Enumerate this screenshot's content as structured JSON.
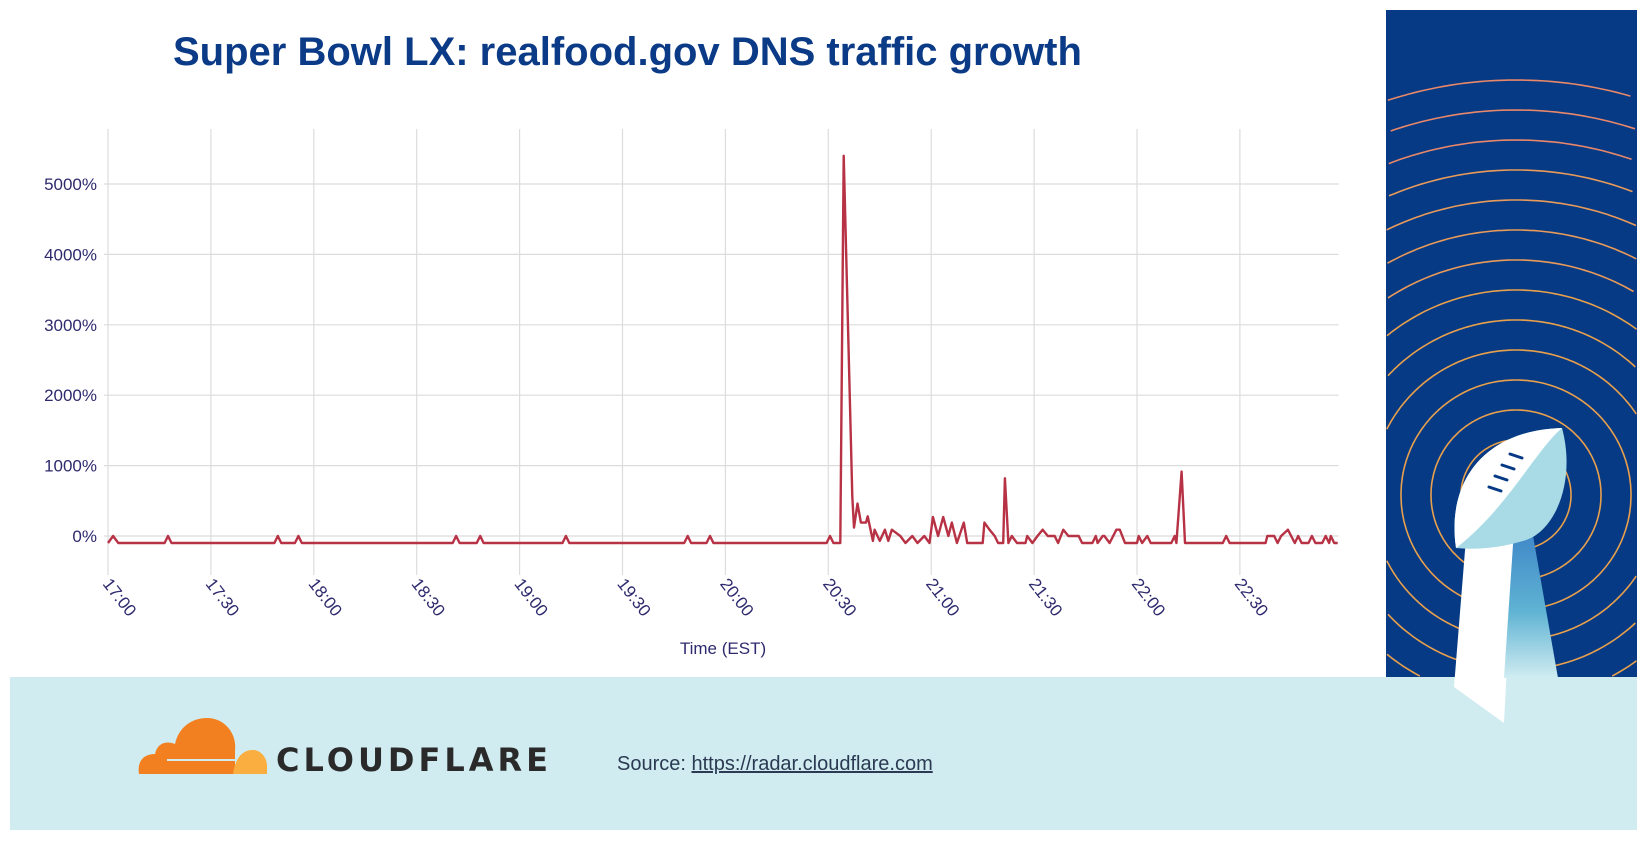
{
  "chart_data": {
    "type": "line",
    "title": "Super Bowl LX: realfood.gov DNS traffic growth",
    "xlabel": "Time (EST)",
    "ylabel": "",
    "x_ticks": [
      "17:00",
      "17:30",
      "18:00",
      "18:30",
      "19:00",
      "19:30",
      "20:00",
      "20:30",
      "21:00",
      "21:30",
      "22:00",
      "22:30"
    ],
    "y_ticks": [
      "0%",
      "1000%",
      "2000%",
      "3000%",
      "4000%",
      "5000%"
    ],
    "y_tick_values": [
      0,
      1000,
      2000,
      3000,
      4000,
      5000
    ],
    "xlim": [
      "17:00",
      "22:58:30"
    ],
    "ylim": [
      -300,
      5750
    ],
    "grid": true,
    "line_color": "#b83245",
    "series": [
      {
        "points": [
          [
            "17:00:00",
            -100
          ],
          [
            "17:01:30",
            0
          ],
          [
            "17:03:00",
            -100
          ],
          [
            "17:16:30",
            -100
          ],
          [
            "17:17:30",
            0
          ],
          [
            "17:18:30",
            -100
          ],
          [
            "17:48:30",
            -100
          ],
          [
            "17:49:30",
            0
          ],
          [
            "17:50:30",
            -100
          ],
          [
            "17:54:30",
            -100
          ],
          [
            "17:55:30",
            0
          ],
          [
            "17:56:30",
            -100
          ],
          [
            "18:40:30",
            -100
          ],
          [
            "18:41:30",
            0
          ],
          [
            "18:42:30",
            -100
          ],
          [
            "18:47:30",
            -100
          ],
          [
            "18:48:30",
            0
          ],
          [
            "18:49:30",
            -100
          ],
          [
            "19:12:30",
            -100
          ],
          [
            "19:13:30",
            0
          ],
          [
            "19:14:30",
            -100
          ],
          [
            "19:48:00",
            -100
          ],
          [
            "19:49:00",
            0
          ],
          [
            "19:50:00",
            -100
          ],
          [
            "19:54:30",
            -100
          ],
          [
            "19:55:30",
            0
          ],
          [
            "19:56:30",
            -100
          ],
          [
            "20:29:30",
            -100
          ],
          [
            "20:30:30",
            0
          ],
          [
            "20:31:30",
            -100
          ],
          [
            "20:33:30",
            -100
          ],
          [
            "20:34:30",
            5400
          ],
          [
            "20:37:00",
            560
          ],
          [
            "20:37:30",
            120
          ],
          [
            "20:38:30",
            460
          ],
          [
            "20:39:30",
            190
          ],
          [
            "20:41:00",
            190
          ],
          [
            "20:41:30",
            280
          ],
          [
            "20:43:00",
            -70
          ],
          [
            "20:43:30",
            90
          ],
          [
            "20:45:00",
            -70
          ],
          [
            "20:46:30",
            90
          ],
          [
            "20:47:30",
            -70
          ],
          [
            "20:48:30",
            90
          ],
          [
            "20:51:00",
            0
          ],
          [
            "20:52:30",
            -100
          ],
          [
            "20:54:30",
            0
          ],
          [
            "20:56:00",
            -100
          ],
          [
            "20:58:00",
            0
          ],
          [
            "20:59:30",
            -100
          ],
          [
            "21:00:30",
            270
          ],
          [
            "21:02:00",
            0
          ],
          [
            "21:03:30",
            270
          ],
          [
            "21:05:00",
            0
          ],
          [
            "21:06:00",
            190
          ],
          [
            "21:07:30",
            -100
          ],
          [
            "21:09:30",
            190
          ],
          [
            "21:10:30",
            -100
          ],
          [
            "21:15:00",
            -100
          ],
          [
            "21:15:30",
            190
          ],
          [
            "21:17:00",
            90
          ],
          [
            "21:18:30",
            0
          ],
          [
            "21:19:30",
            -100
          ],
          [
            "21:21:00",
            -100
          ],
          [
            "21:21:30",
            820
          ],
          [
            "21:22:30",
            -100
          ],
          [
            "21:23:30",
            0
          ],
          [
            "21:25:00",
            -100
          ],
          [
            "21:27:30",
            -100
          ],
          [
            "21:28:00",
            0
          ],
          [
            "21:29:30",
            -100
          ],
          [
            "21:31:00",
            0
          ],
          [
            "21:32:30",
            90
          ],
          [
            "21:34:00",
            0
          ],
          [
            "21:36:00",
            0
          ],
          [
            "21:37:00",
            -100
          ],
          [
            "21:38:30",
            90
          ],
          [
            "21:40:00",
            0
          ],
          [
            "21:43:00",
            0
          ],
          [
            "21:44:00",
            -100
          ],
          [
            "21:47:00",
            -100
          ],
          [
            "21:48:00",
            0
          ],
          [
            "21:48:30",
            -100
          ],
          [
            "21:50:00",
            0
          ],
          [
            "21:50:30",
            0
          ],
          [
            "21:52:00",
            -100
          ],
          [
            "21:54:00",
            90
          ],
          [
            "21:55:00",
            90
          ],
          [
            "21:56:30",
            -100
          ],
          [
            "22:00:00",
            -100
          ],
          [
            "22:00:30",
            0
          ],
          [
            "22:01:30",
            -100
          ],
          [
            "22:03:00",
            0
          ],
          [
            "22:04:00",
            -100
          ],
          [
            "22:10:00",
            -100
          ],
          [
            "22:11:00",
            0
          ],
          [
            "22:11:30",
            -100
          ],
          [
            "22:13:00",
            915
          ],
          [
            "22:14:00",
            -100
          ],
          [
            "22:25:00",
            -100
          ],
          [
            "22:26:00",
            0
          ],
          [
            "22:27:00",
            -100
          ],
          [
            "22:37:30",
            -100
          ],
          [
            "22:38:00",
            0
          ],
          [
            "22:40:00",
            0
          ],
          [
            "22:41:00",
            -100
          ],
          [
            "22:42:00",
            0
          ],
          [
            "22:44:00",
            90
          ],
          [
            "22:46:00",
            -100
          ],
          [
            "22:47:00",
            0
          ],
          [
            "22:48:00",
            -100
          ],
          [
            "22:50:00",
            -100
          ],
          [
            "22:51:00",
            0
          ],
          [
            "22:52:00",
            -100
          ],
          [
            "22:54:00",
            -100
          ],
          [
            "22:55:00",
            0
          ],
          [
            "22:56:00",
            -100
          ],
          [
            "22:56:30",
            0
          ],
          [
            "22:57:30",
            -100
          ],
          [
            "22:58:30",
            -100
          ]
        ]
      }
    ]
  },
  "branding": {
    "logo_text": "CLOUDFLARE",
    "logo_colors": {
      "cloud_main": "#f38020",
      "cloud_light": "#faae40"
    },
    "panel_color": "#063a84",
    "ring_color": "#e8a04c",
    "footer_color": "#d0ecf1"
  },
  "footer": {
    "source_label": "Source:",
    "source_link": "https://radar.cloudflare.com"
  }
}
